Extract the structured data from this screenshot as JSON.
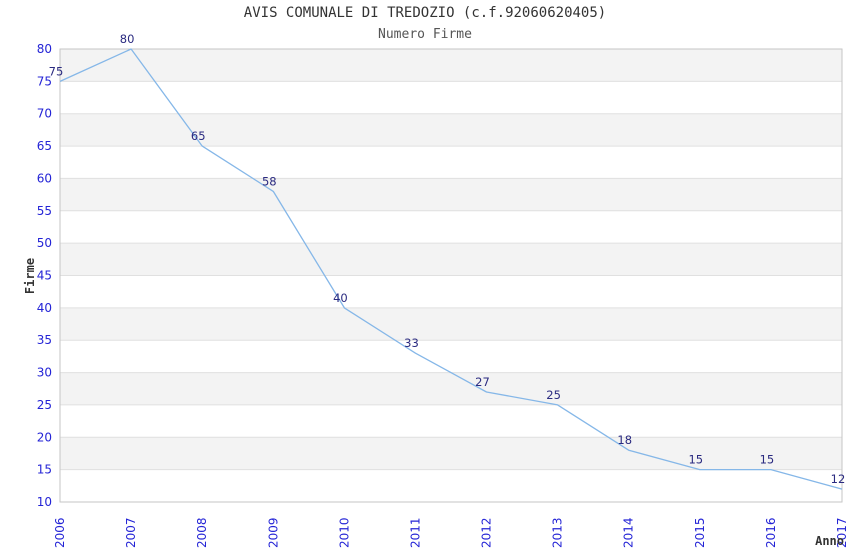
{
  "header": {
    "title": "AVIS COMUNALE DI TREDOZIO (c.f.92060620405)",
    "subtitle": "Numero Firme"
  },
  "chart_data": {
    "type": "line",
    "title": "AVIS COMUNALE DI TREDOZIO (c.f.92060620405)",
    "subtitle": "Numero Firme",
    "xlabel": "Anno",
    "ylabel": "Firme",
    "categories": [
      "2006",
      "2007",
      "2008",
      "2009",
      "2010",
      "2011",
      "2012",
      "2013",
      "2014",
      "2015",
      "2016",
      "2017"
    ],
    "series": [
      {
        "name": "Numero Firme",
        "values": [
          75,
          80,
          65,
          58,
          40,
          33,
          27,
          25,
          18,
          15,
          15,
          12
        ]
      }
    ],
    "data_labels_visible": true,
    "ylim": [
      10,
      80
    ],
    "ytick_step": 5,
    "yticks": [
      10,
      15,
      20,
      25,
      30,
      35,
      40,
      45,
      50,
      55,
      60,
      65,
      70,
      75,
      80
    ],
    "legend": "none",
    "grid": "horizontal",
    "banding": "alternating-gray-white",
    "xtick_rotation": -90,
    "colors": {
      "line": "#85b7e8",
      "tick_label": "#2424d6",
      "data_label": "#2a2a80",
      "band": "#f3f3f3",
      "gridline": "#e0e0e0",
      "plot_border": "#c6c6c6",
      "title": "#333333",
      "subtitle": "#555555",
      "axis_title": "#333333",
      "background": "#ffffff"
    }
  }
}
